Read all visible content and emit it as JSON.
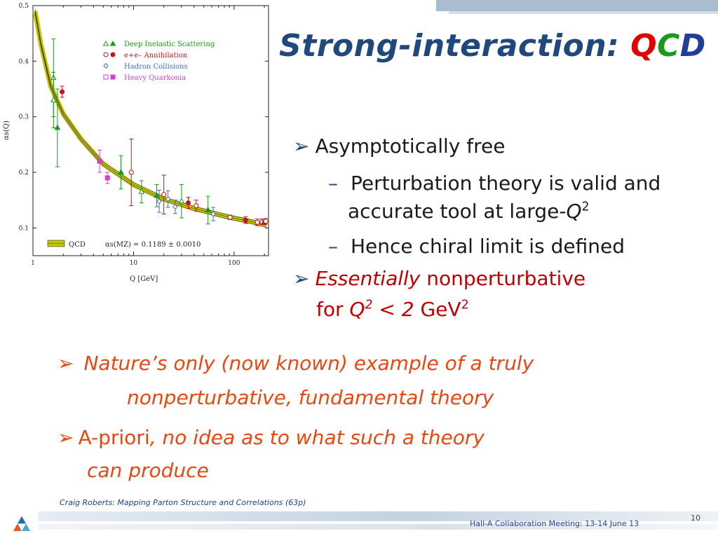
{
  "slide": {
    "title_prefix": "Strong-interaction: ",
    "title_q": "Q",
    "title_c": "C",
    "title_d": "D",
    "bullets": {
      "b1": "Asymptotically free",
      "b1a": "Perturbation theory is valid and",
      "b1a2_pre": "accurate tool at large-",
      "q": "Q",
      "sq": "2",
      "b1b": "Hence chiral limit is defined",
      "b2_ital": "Essentially",
      "b2_rest": " nonperturbative",
      "b2_for": "for ",
      "b2_lt": " < 2",
      "b2_gev": " GeV",
      "b3a": "Nature’s only (now known) example of a truly",
      "b3b": "nonperturbative, fundamental theory",
      "b4_pre": "A-priori",
      "b4_ital": ", no idea as to what such a theory",
      "b4b": "can produce"
    },
    "footer": {
      "citation": "Craig Roberts: Mapping Parton Structure and Correlations (63p)",
      "meeting": "Hall-A Collaboration Meeting: 13-14 June 13",
      "page_number": "10"
    }
  },
  "chart_data": {
    "type": "scatter",
    "x_scale": "log",
    "xlabel": "Q [GeV]",
    "ylabel": "αs(Q)",
    "xlim": [
      1,
      220
    ],
    "ylim": [
      0.05,
      0.5
    ],
    "xticks": [
      "1",
      "10",
      "100"
    ],
    "yticks": [
      "0.1",
      "0.2",
      "0.3",
      "0.4",
      "0.5"
    ],
    "legend": [
      "Deep Inelastic Scattering",
      "e+e– Annihilation",
      "Hadron Collisions",
      "Heavy Quarkonia"
    ],
    "band_label": "QCD",
    "annotation": "αs(MZ) = 0.1189 ± 0.0010",
    "colors": {
      "dis": "#1a9a1a",
      "ee": "#c0151b",
      "hadron": "#3a6fd8",
      "quarkonia": "#d23fc8",
      "band": "#c8c800"
    },
    "qcd_curve": [
      [
        1.05,
        0.49
      ],
      [
        1.2,
        0.43
      ],
      [
        1.5,
        0.355
      ],
      [
        2,
        0.305
      ],
      [
        3,
        0.26
      ],
      [
        5,
        0.215
      ],
      [
        10,
        0.178
      ],
      [
        20,
        0.152
      ],
      [
        40,
        0.135
      ],
      [
        91.2,
        0.1189
      ],
      [
        150,
        0.111
      ],
      [
        210,
        0.105
      ]
    ],
    "series": [
      {
        "name": "Deep Inelastic Scattering",
        "key": "dis",
        "points": [
          [
            1.6,
            0.37,
            0.07
          ],
          [
            1.75,
            0.28,
            0.07
          ],
          [
            1.6,
            0.33,
            0.05
          ],
          [
            7.5,
            0.2,
            0.03
          ],
          [
            12,
            0.165,
            0.02
          ],
          [
            17,
            0.158,
            0.02
          ],
          [
            30,
            0.148,
            0.03
          ],
          [
            55,
            0.132,
            0.025
          ]
        ]
      },
      {
        "name": "e+e– Annihilation",
        "key": "ee",
        "points": [
          [
            1.95,
            0.345,
            0.01
          ],
          [
            9.5,
            0.2,
            0.06
          ],
          [
            20,
            0.16,
            0.035
          ],
          [
            35,
            0.145,
            0.01
          ],
          [
            42,
            0.14,
            0.01
          ],
          [
            91.2,
            0.119,
            0.004
          ],
          [
            130,
            0.114,
            0.006
          ],
          [
            170,
            0.11,
            0.006
          ],
          [
            189,
            0.111,
            0.005
          ],
          [
            200,
            0.11,
            0.004
          ],
          [
            206,
            0.112,
            0.005
          ]
        ]
      },
      {
        "name": "Hadron Collisions",
        "key": "hadron",
        "points": [
          [
            18,
            0.148,
            0.02
          ],
          [
            22,
            0.152,
            0.015
          ],
          [
            26,
            0.138,
            0.012
          ],
          [
            62,
            0.125,
            0.012
          ]
        ]
      },
      {
        "name": "Heavy Quarkonia",
        "key": "quarkonia",
        "points": [
          [
            4.6,
            0.22,
            0.02
          ],
          [
            5.5,
            0.19,
            0.01
          ]
        ]
      }
    ]
  }
}
